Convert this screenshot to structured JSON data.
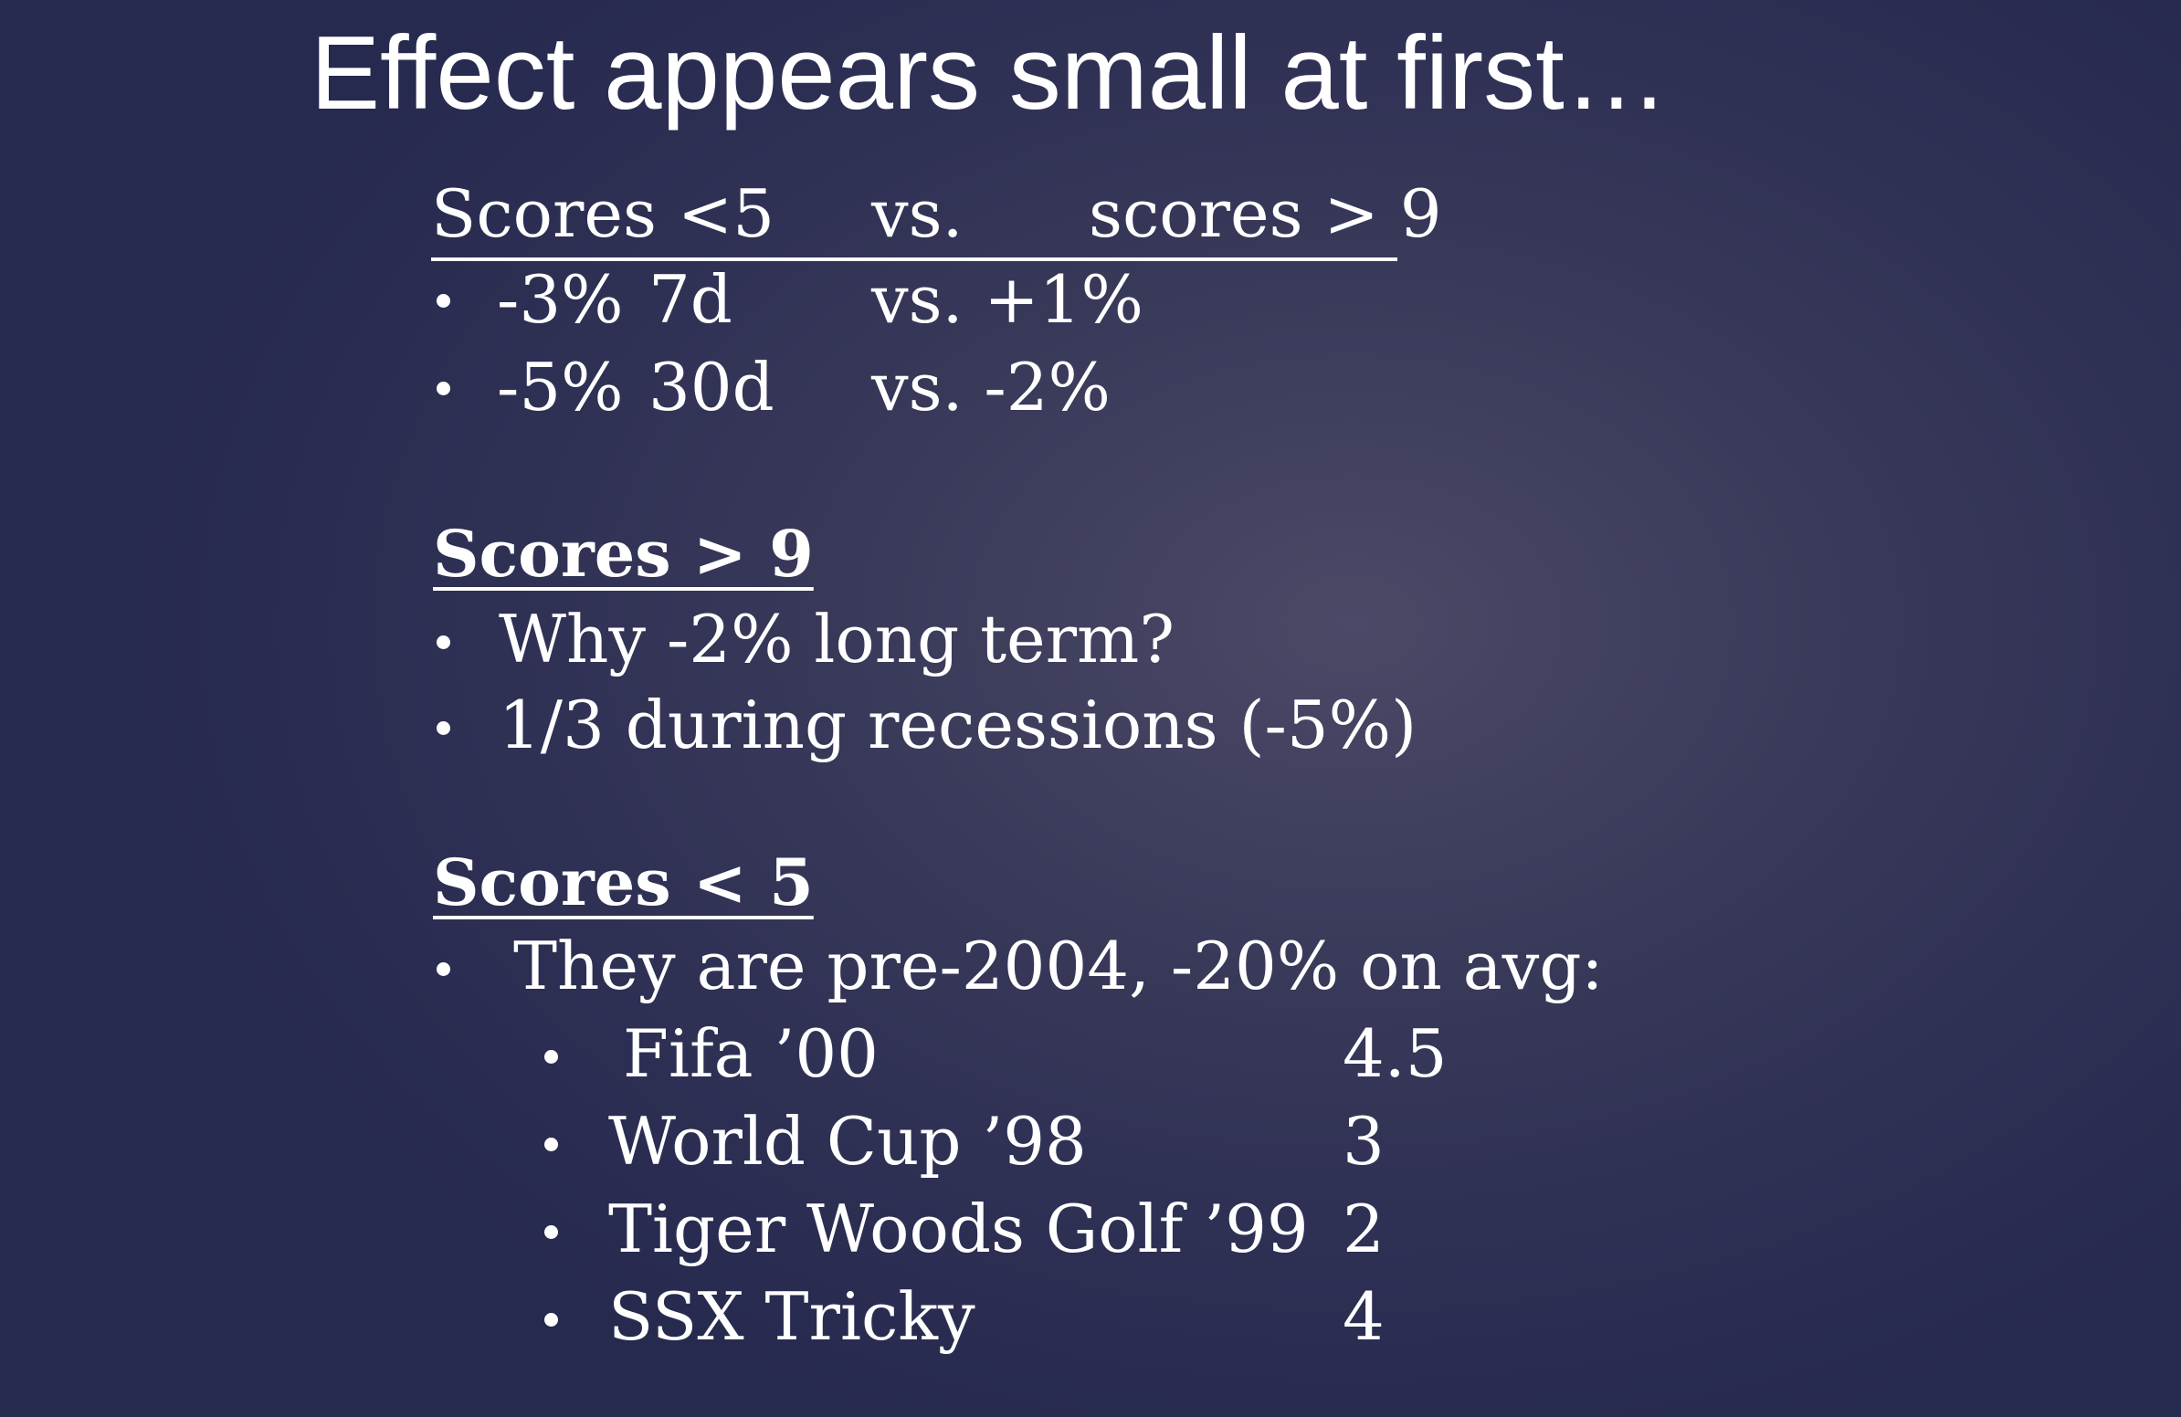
{
  "slide": {
    "title": "Effect appears small at first…",
    "comparison": {
      "header": {
        "left": "Scores <5",
        "middle": "vs.",
        "right": "scores > 9"
      },
      "rows": [
        {
          "low": "-3%",
          "period": "7d",
          "high": "vs. +1%"
        },
        {
          "low": "-5%",
          "period": "30d",
          "high": "vs. -2%"
        }
      ]
    },
    "high_scores": {
      "heading": "Scores > 9",
      "bullets": [
        "Why -2% long term?",
        "1/3 during recessions (-5%)"
      ]
    },
    "low_scores": {
      "heading": "Scores < 5",
      "intro": "They are pre-2004, -20% on avg:",
      "games": [
        {
          "name": "Fifa ’00",
          "score": "4.5"
        },
        {
          "name": "World Cup ’98",
          "score": "3"
        },
        {
          "name": "Tiger Woods Golf ’99",
          "score": "2"
        },
        {
          "name": "SSX Tricky",
          "score": "4"
        }
      ]
    }
  },
  "colors": {
    "background": "#2e3054",
    "text": "#ffffff"
  }
}
